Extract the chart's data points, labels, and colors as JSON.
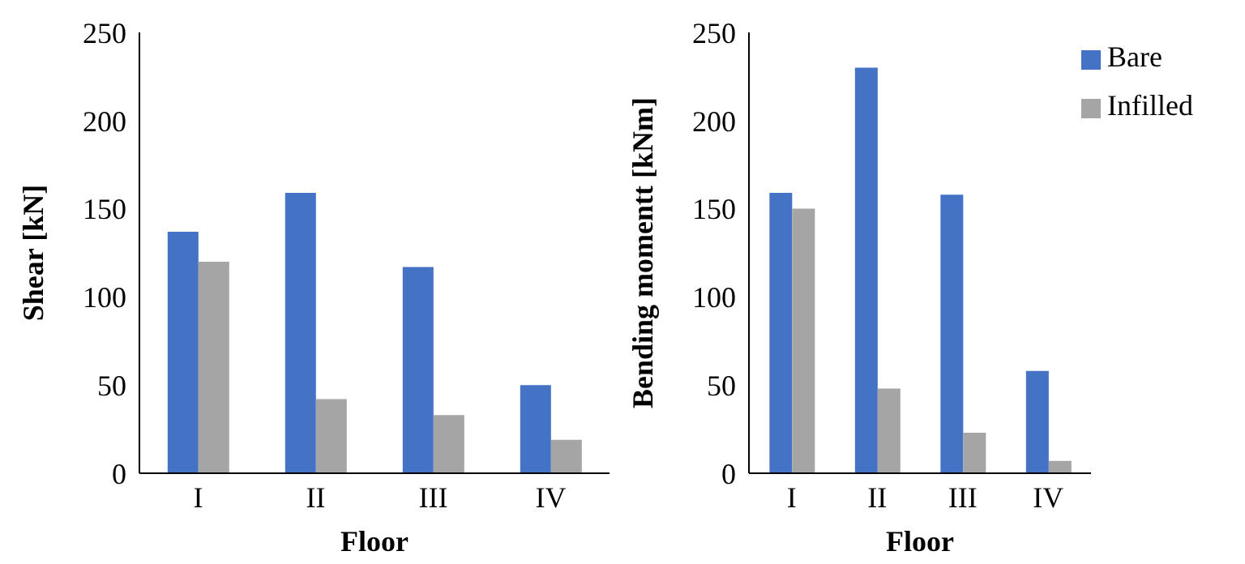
{
  "chart_data": [
    {
      "type": "bar",
      "xlabel": "Floor",
      "ylabel": "Shear [kN]",
      "categories": [
        "I",
        "II",
        "III",
        "IV"
      ],
      "series": [
        {
          "color": "#4472c4",
          "values": [
            137,
            159,
            117,
            50
          ]
        },
        {
          "color": "#a5a5a5",
          "values": [
            120,
            42,
            33,
            19
          ]
        }
      ],
      "ylim": [
        0,
        250
      ],
      "yticks": [
        0,
        50,
        100,
        150,
        200,
        250
      ],
      "grid": false,
      "legend": false
    },
    {
      "type": "bar",
      "xlabel": "Floor",
      "ylabel": "Bending momentt [kNm]",
      "categories": [
        "I",
        "II",
        "III",
        "IV"
      ],
      "series": [
        {
          "name": "Bare",
          "color": "#4472c4",
          "values": [
            159,
            230,
            158,
            58
          ]
        },
        {
          "name": "Infilled",
          "color": "#a5a5a5",
          "values": [
            150,
            48,
            23,
            7
          ]
        }
      ],
      "ylim": [
        0,
        250
      ],
      "yticks": [
        0,
        50,
        100,
        150,
        200,
        250
      ],
      "grid": false,
      "legend": "top right"
    }
  ]
}
